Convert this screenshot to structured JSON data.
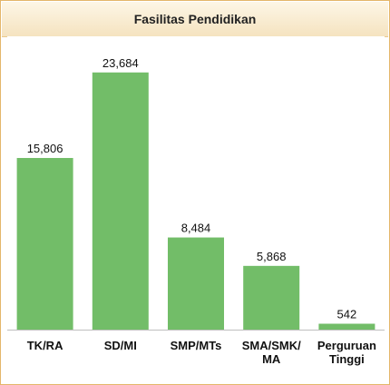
{
  "chart_data": {
    "type": "bar",
    "title": "Fasilitas Pendidikan",
    "categories": [
      [
        "TK/RA"
      ],
      [
        "SD/MI"
      ],
      [
        "SMP/MTs"
      ],
      [
        "SMA/SMK/",
        "MA"
      ],
      [
        "Perguruan",
        "Tinggi"
      ]
    ],
    "values": [
      15806,
      23684,
      8484,
      5868,
      542
    ],
    "value_labels": [
      "15,806",
      "23,684",
      "8,484",
      "5,868",
      "542"
    ],
    "bar_color": "#72bd68",
    "ylim": [
      0,
      24000
    ],
    "grid": false,
    "legend": "none"
  }
}
